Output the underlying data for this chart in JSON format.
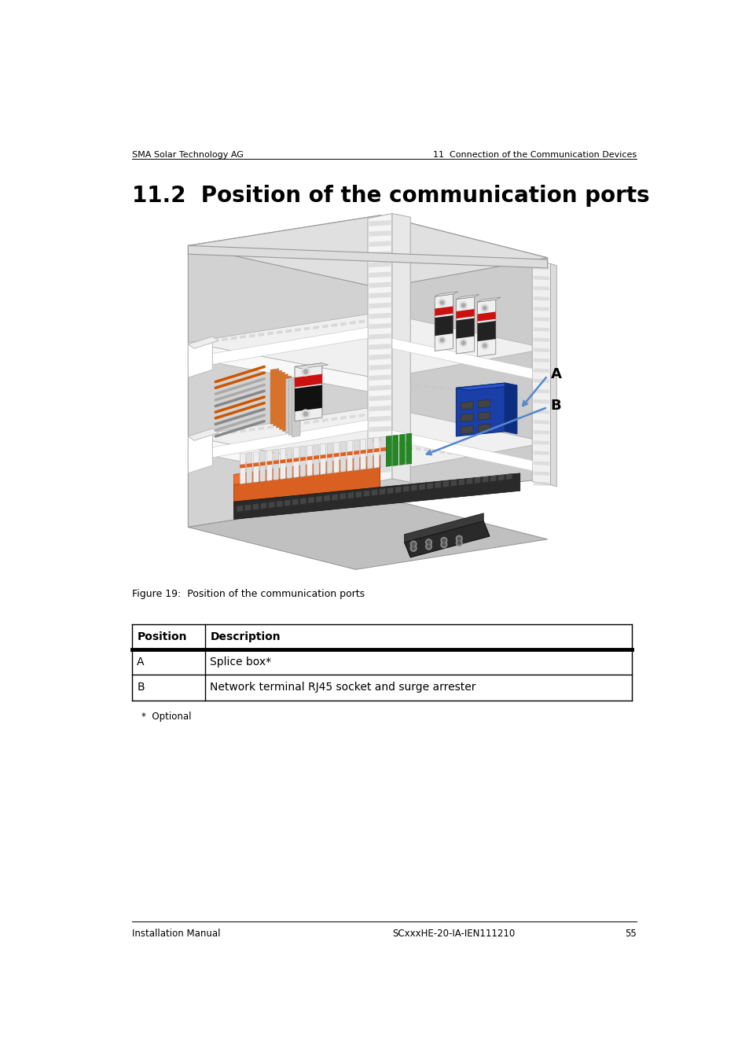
{
  "page_title": "11.2  Position of the communication ports",
  "header_left": "SMA Solar Technology AG",
  "header_right": "11  Connection of the Communication Devices",
  "footer_left": "Installation Manual",
  "footer_right": "SCxxxHE-20-IA-IEN111210",
  "footer_page": "55",
  "figure_caption": "Figure 19:  Position of the communication ports",
  "table_headers": [
    "Position",
    "Description"
  ],
  "table_rows": [
    [
      "A",
      "Splice box*"
    ],
    [
      "B",
      "Network terminal RJ45 socket and surge arrester"
    ]
  ],
  "footnote": "*  Optional",
  "label_A": "A",
  "label_B": "B",
  "bg_color": "#ffffff"
}
